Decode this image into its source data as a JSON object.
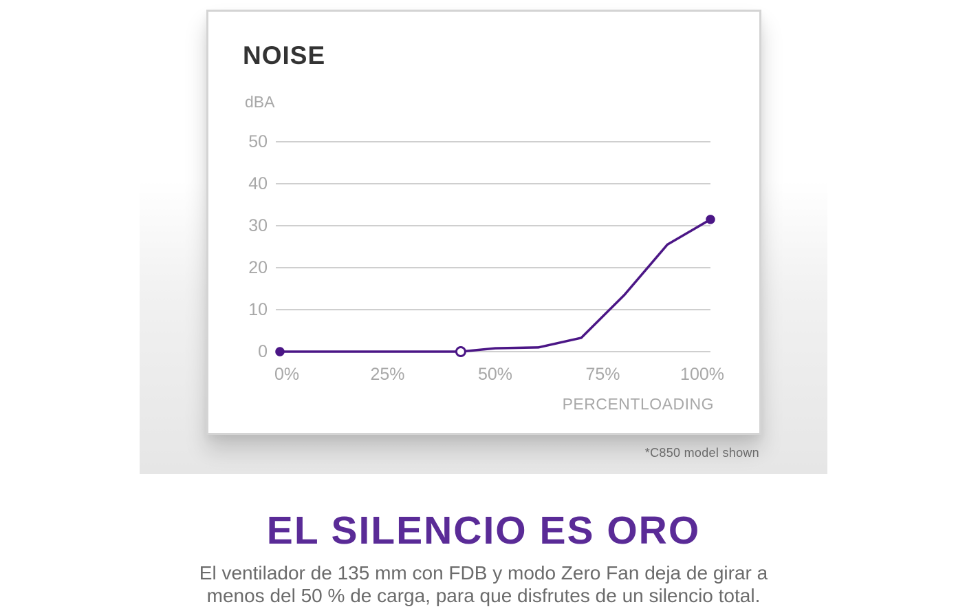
{
  "chart_data": {
    "type": "line",
    "title": "NOISE",
    "ylabel": "dBA",
    "xlabel": "PERCENTLOADING",
    "ylim": [
      0,
      50
    ],
    "xlim": [
      0,
      100
    ],
    "grid": true,
    "y_ticks": [
      0,
      10,
      20,
      30,
      40,
      50
    ],
    "y_tick_labels": [
      "0",
      "10",
      "20",
      "30",
      "40",
      "50"
    ],
    "x_tick_labels": [
      "0%",
      "25%",
      "50%",
      "75%",
      "100%"
    ],
    "series": [
      {
        "name": "Noise",
        "color": "#4b1686",
        "x": [
          0,
          42,
          50,
          60,
          70,
          80,
          90,
          100
        ],
        "y": [
          0,
          0,
          0.8,
          1,
          3.3,
          13.5,
          25.5,
          31.5
        ]
      }
    ],
    "markers": [
      {
        "x": 0,
        "y": 0,
        "style": "filled"
      },
      {
        "x": 42,
        "y": 0,
        "style": "hollow"
      },
      {
        "x": 100,
        "y": 31.5,
        "style": "filled"
      }
    ]
  },
  "footnote": "*C850 model shown",
  "headline": "EL SILENCIO ES ORO",
  "body_lines": [
    "El ventilador de 135 mm con FDB y modo Zero Fan deja de girar a",
    "menos del 50 % de carga, para que disfrutes de un silencio total."
  ],
  "colors": {
    "accent": "#5a2b97",
    "line": "#4b1686",
    "grid": "#cfcfcf",
    "tick_text": "#a8a8a8",
    "title_text": "#333333"
  }
}
